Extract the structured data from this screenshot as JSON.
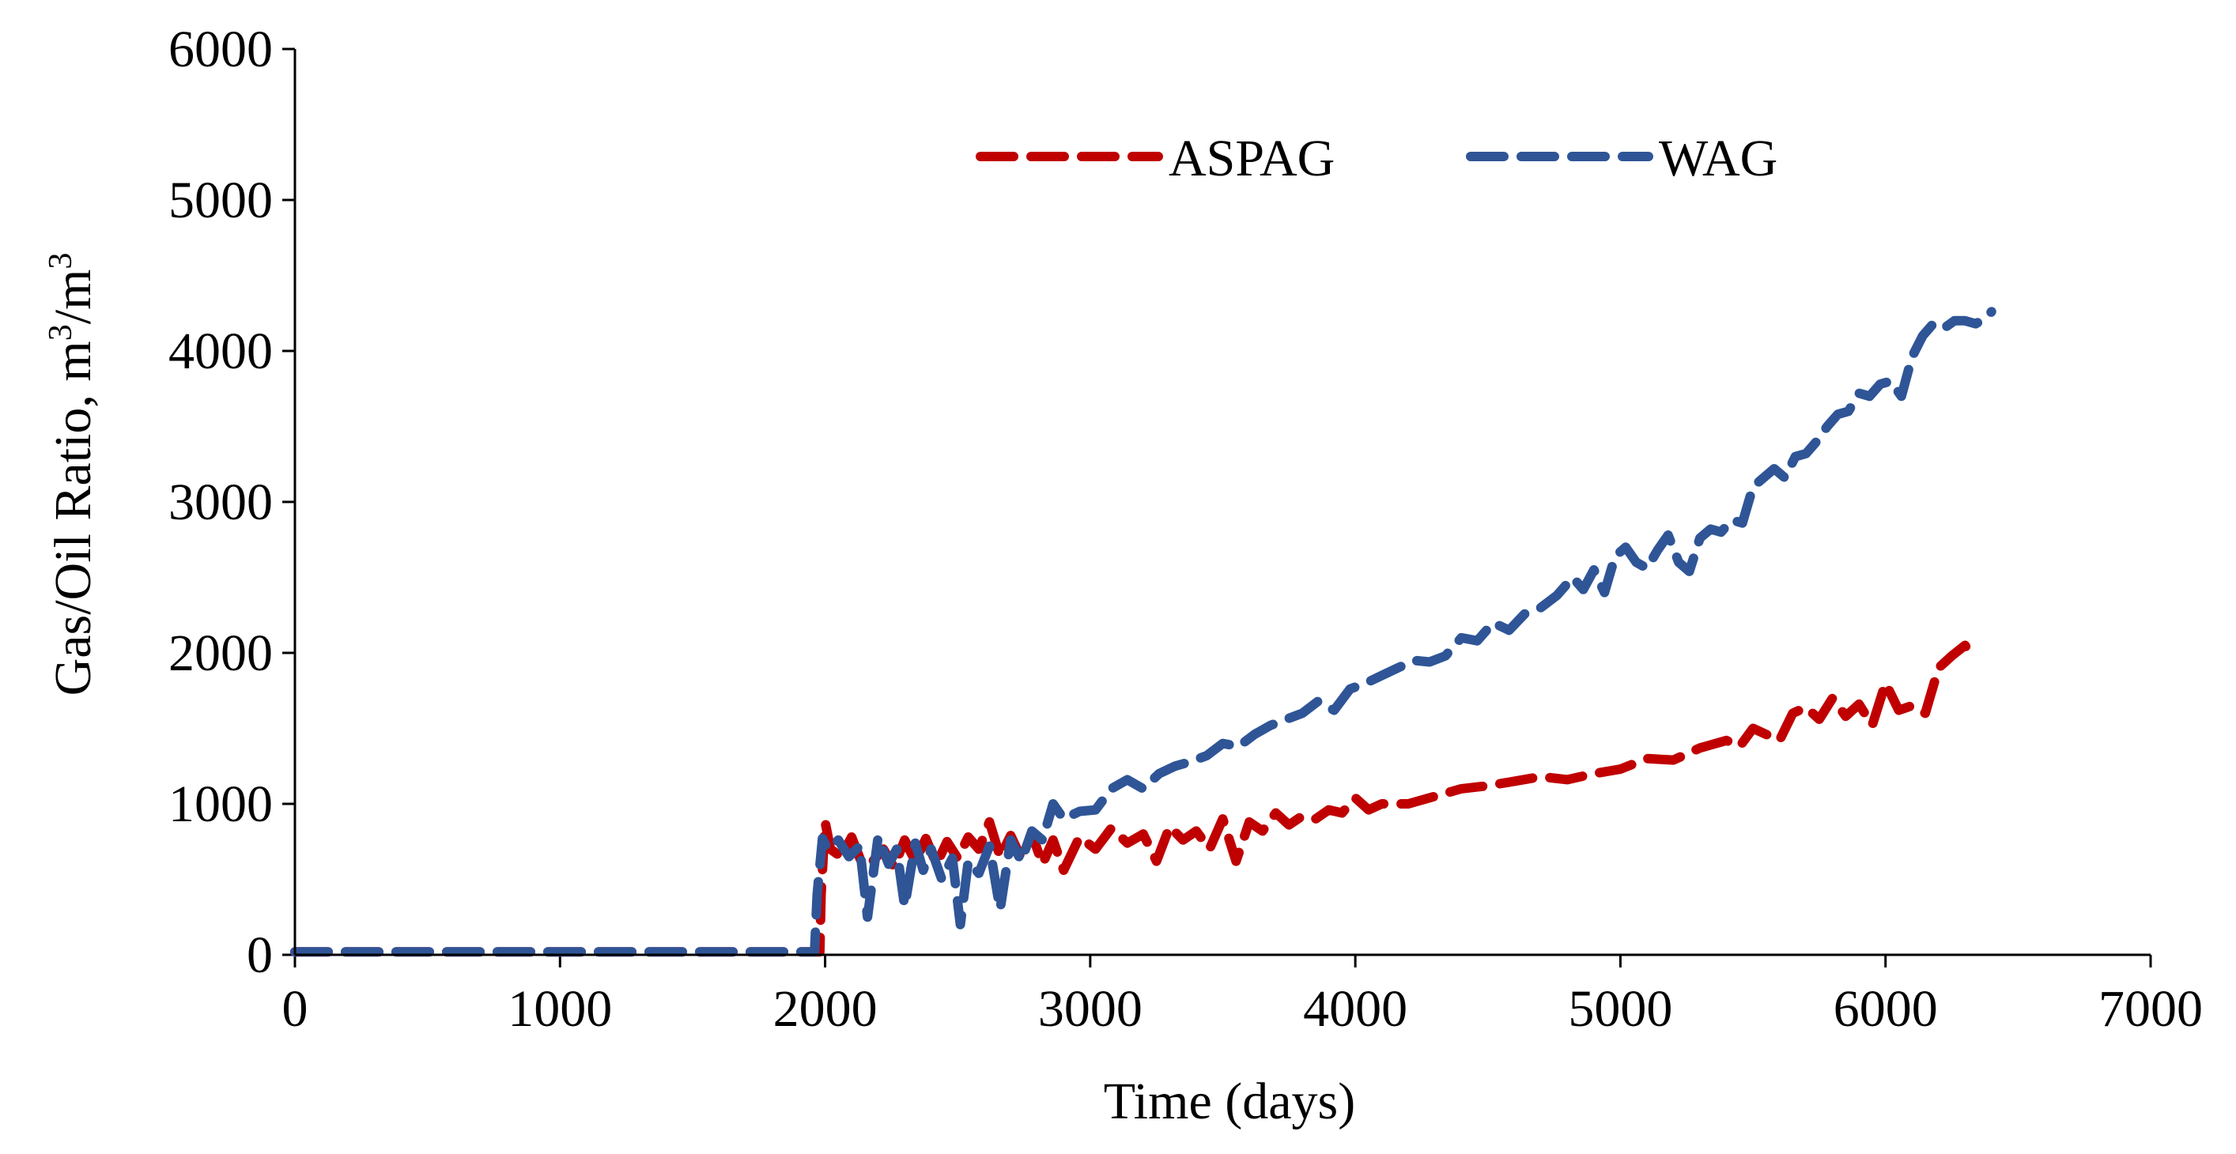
{
  "chart_data": {
    "type": "line",
    "title": "",
    "xlabel": "Time (days)",
    "ylabel_main": "Gas/Oil Ratio, m",
    "ylabel_sup1": "3",
    "ylabel_mid": "/m",
    "ylabel_sup2": "3",
    "xlim": [
      0,
      7000
    ],
    "ylim": [
      0,
      6000
    ],
    "xticks": [
      0,
      1000,
      2000,
      3000,
      4000,
      5000,
      6000,
      7000
    ],
    "yticks": [
      0,
      1000,
      2000,
      3000,
      4000,
      5000,
      6000
    ],
    "grid": false,
    "legend_position": "top-center",
    "series": [
      {
        "name": "ASPAG",
        "color": "#C00000",
        "x": [
          0,
          500,
          1000,
          1500,
          1980,
          1985,
          2000,
          2020,
          2060,
          2100,
          2140,
          2180,
          2220,
          2260,
          2300,
          2340,
          2380,
          2420,
          2460,
          2500,
          2540,
          2580,
          2620,
          2660,
          2700,
          2740,
          2780,
          2820,
          2860,
          2900,
          2960,
          3020,
          3080,
          3140,
          3200,
          3250,
          3300,
          3350,
          3400,
          3450,
          3500,
          3550,
          3600,
          3650,
          3700,
          3750,
          3800,
          3850,
          3900,
          3950,
          4000,
          4050,
          4100,
          4200,
          4300,
          4400,
          4500,
          4600,
          4700,
          4800,
          4900,
          5000,
          5100,
          5200,
          5300,
          5400,
          5450,
          5500,
          5600,
          5650,
          5700,
          5750,
          5800,
          5850,
          5900,
          5950,
          6000,
          6050,
          6100,
          6150,
          6200,
          6250,
          6300,
          6340
        ],
        "y": [
          20,
          20,
          20,
          20,
          20,
          400,
          880,
          700,
          650,
          780,
          600,
          620,
          700,
          580,
          760,
          620,
          770,
          600,
          750,
          640,
          780,
          700,
          880,
          650,
          790,
          640,
          800,
          600,
          760,
          560,
          780,
          700,
          840,
          740,
          800,
          620,
          850,
          760,
          820,
          700,
          900,
          620,
          880,
          820,
          940,
          860,
          920,
          900,
          960,
          940,
          1040,
          960,
          1000,
          1000,
          1050,
          1100,
          1120,
          1150,
          1180,
          1160,
          1200,
          1230,
          1300,
          1290,
          1370,
          1420,
          1380,
          1500,
          1420,
          1600,
          1640,
          1560,
          1700,
          1580,
          1660,
          1520,
          1800,
          1620,
          1650,
          1600,
          1900,
          1980,
          2050,
          1950
        ]
      },
      {
        "name": "WAG",
        "color": "#2F5597",
        "x": [
          0,
          500,
          1000,
          1500,
          1950,
          1960,
          1970,
          1990,
          2010,
          2050,
          2090,
          2130,
          2160,
          2200,
          2240,
          2270,
          2300,
          2340,
          2370,
          2400,
          2440,
          2480,
          2510,
          2540,
          2580,
          2620,
          2660,
          2700,
          2740,
          2780,
          2820,
          2860,
          2900,
          2960,
          3020,
          3080,
          3140,
          3200,
          3260,
          3320,
          3380,
          3440,
          3500,
          3560,
          3620,
          3680,
          3740,
          3800,
          3860,
          3920,
          3980,
          4040,
          4100,
          4160,
          4220,
          4280,
          4340,
          4400,
          4460,
          4520,
          4580,
          4640,
          4700,
          4760,
          4820,
          4860,
          4900,
          4940,
          4980,
          5020,
          5060,
          5100,
          5140,
          5180,
          5220,
          5260,
          5300,
          5340,
          5380,
          5420,
          5460,
          5500,
          5540,
          5580,
          5620,
          5660,
          5700,
          5740,
          5780,
          5820,
          5860,
          5900,
          5940,
          5980,
          6020,
          6060,
          6100,
          6140,
          6180,
          6220,
          6260,
          6300,
          6340,
          6380,
          6400
        ],
        "y": [
          20,
          20,
          20,
          20,
          20,
          20,
          400,
          770,
          700,
          760,
          650,
          720,
          250,
          780,
          600,
          700,
          320,
          740,
          560,
          700,
          500,
          640,
          200,
          620,
          540,
          720,
          300,
          760,
          620,
          820,
          760,
          1000,
          900,
          950,
          960,
          1100,
          1160,
          1100,
          1200,
          1250,
          1280,
          1320,
          1400,
          1380,
          1460,
          1520,
          1560,
          1600,
          1680,
          1620,
          1760,
          1800,
          1850,
          1900,
          1950,
          1940,
          1980,
          2100,
          2080,
          2200,
          2150,
          2260,
          2300,
          2380,
          2500,
          2420,
          2550,
          2400,
          2640,
          2700,
          2600,
          2560,
          2680,
          2780,
          2600,
          2540,
          2760,
          2820,
          2800,
          2880,
          2860,
          3100,
          3160,
          3220,
          3160,
          3300,
          3320,
          3400,
          3500,
          3580,
          3600,
          3720,
          3700,
          3780,
          3800,
          3700,
          3960,
          4100,
          4180,
          4150,
          4200,
          4200,
          4180,
          4220,
          4260
        ]
      }
    ]
  }
}
